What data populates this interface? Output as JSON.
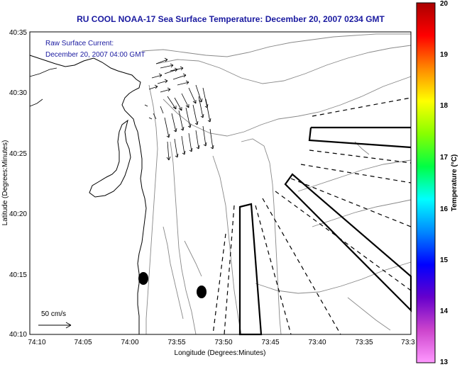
{
  "header": {
    "title": "RU COOL  NOAA-17  Sea Surface Temperature:  December 20, 2007 0234 GMT"
  },
  "overlay": {
    "line1": "Raw Surface Current:",
    "line2": "December 20, 2007 04:00 GMT"
  },
  "axes": {
    "x_label": "Longitude (Degrees:Minutes)",
    "y_label": "Latitude (Degrees:Minutes)",
    "x_ticks": [
      "74:10",
      "74:05",
      "74:00",
      "73:55",
      "73:50",
      "73:45",
      "73:40",
      "73:35",
      "73:3"
    ],
    "y_ticks": [
      "40:35",
      "40:30",
      "40:25",
      "40:20",
      "40:15",
      "40:10"
    ]
  },
  "scale": {
    "label": "50 cm/s"
  },
  "colorbar": {
    "label": "Temperature (°C)",
    "ticks": [
      "20",
      "19",
      "18",
      "17",
      "16",
      "15",
      "14",
      "13"
    ],
    "colors": [
      "#aa0000",
      "#ff0000",
      "#ff8800",
      "#ffff00",
      "#88ff00",
      "#00ff44",
      "#00ffff",
      "#0088ff",
      "#0000ff",
      "#6600cc",
      "#cc44cc",
      "#ff99ff"
    ]
  }
}
